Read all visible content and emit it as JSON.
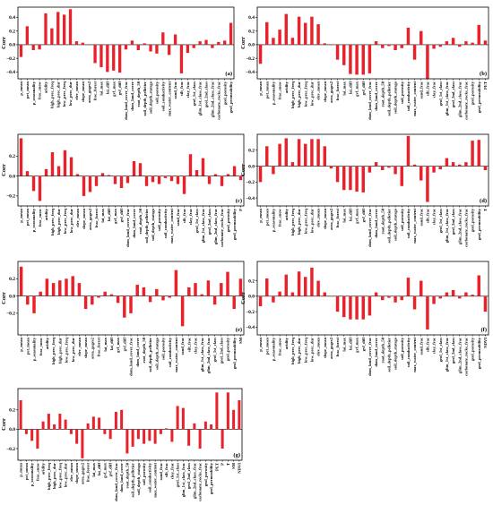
{
  "chart_data": [
    {
      "type": "bar",
      "panel_label": "(a)",
      "ylabel": "Corr",
      "ylim": [
        -0.5,
        0.55
      ],
      "yticks": [
        -0.4,
        -0.2,
        0.0,
        0.2,
        0.4
      ],
      "bar_color": "#e8212a",
      "categories": [
        "p_mean",
        "pet_mean",
        "p_seasonality",
        "frac_snow",
        "aridity",
        "high_prec_freq",
        "high_prec_dur",
        "low_prec_freq",
        "low_prec_dur",
        "elev_mean",
        "slope_mean",
        "area_gages2",
        "frac_forest",
        "lai_max",
        "lai_diff",
        "gvf_max",
        "gvf_diff",
        "dom_land_cover_frac",
        "dom_land_cover",
        "root_depth_50",
        "soil_depth_pelletier",
        "soil_depth_statsgo",
        "soil_porosity",
        "soil_conductivity",
        "max_water_content",
        "sand_frac",
        "silt_frac",
        "clay_frac",
        "geol_1st_class",
        "glim_1st_class_frac",
        "geol_2nd_class",
        "glim_2nd_class_frac",
        "carbonate_rocks_frac",
        "geol_porosity",
        "geol_permeability"
      ],
      "values": [
        -0.18,
        0.27,
        -0.08,
        -0.07,
        0.46,
        0.24,
        0.48,
        0.44,
        0.52,
        0.05,
        0.03,
        0.0,
        -0.27,
        -0.33,
        -0.4,
        -0.38,
        -0.41,
        -0.07,
        0.06,
        -0.08,
        0.02,
        -0.1,
        -0.13,
        0.18,
        -0.15,
        0.15,
        -0.42,
        -0.12,
        -0.05,
        0.05,
        0.07,
        -0.05,
        0.04,
        0.06,
        0.32
      ]
    },
    {
      "type": "bar",
      "panel_label": "(b)",
      "ylabel": "Corr",
      "ylim": [
        -0.5,
        0.55
      ],
      "yticks": [
        -0.4,
        -0.2,
        0.0,
        0.2,
        0.4
      ],
      "bar_color": "#e8212a",
      "categories": [
        "p_mean",
        "pet_mean",
        "p_seasonality",
        "frac_snow",
        "aridity",
        "high_prec_freq",
        "high_prec_dur",
        "low_prec_freq",
        "low_prec_dur",
        "elev_mean",
        "slope_mean",
        "area_gages2",
        "frac_forest",
        "lai_max",
        "lai_diff",
        "gvf_max",
        "gvf_diff",
        "dom_land_cover_frac",
        "dom_land_cover",
        "root_depth_50",
        "soil_depth_pelletier",
        "soil_depth_statsgo",
        "soil_porosity",
        "soil_conductivity",
        "max_water_content",
        "sand_frac",
        "silt_frac",
        "clay_frac",
        "geol_1st_class",
        "glim_1st_class_frac",
        "geol_2nd_class",
        "glim_2nd_class_frac",
        "carbonate_rocks_frac",
        "geol_porosity",
        "geol_permeability",
        "PET"
      ],
      "values": [
        -0.28,
        0.33,
        0.1,
        0.22,
        0.45,
        0.1,
        0.41,
        0.32,
        0.41,
        0.3,
        0.02,
        0.0,
        -0.22,
        -0.3,
        -0.43,
        -0.44,
        -0.44,
        -0.42,
        0.05,
        -0.05,
        -0.02,
        -0.08,
        -0.05,
        0.25,
        -0.22,
        0.2,
        -0.5,
        -0.06,
        -0.03,
        0.05,
        0.1,
        -0.03,
        0.05,
        0.03,
        0.29,
        0.06
      ]
    },
    {
      "type": "bar",
      "panel_label": "(c)",
      "ylabel": "Corr",
      "ylim": [
        -0.3,
        0.42
      ],
      "yticks": [
        -0.2,
        0.0,
        0.2
      ],
      "bar_color": "#e8212a",
      "categories": [
        "p_mean",
        "pet_mean",
        "p_seasonality",
        "frac_snow",
        "aridity",
        "high_prec_freq",
        "high_prec_dur",
        "low_prec_freq",
        "low_prec_dur",
        "elev_mean",
        "slope_mean",
        "area_gages2",
        "frac_forest",
        "lai_max",
        "lai_diff",
        "gvf_max",
        "gvf_diff",
        "dom_land_cover_frac",
        "dom_land_cover",
        "root_depth_50",
        "soil_depth_pelletier",
        "soil_depth_statsgo",
        "soil_porosity",
        "soil_conductivity",
        "max_water_content",
        "sand_frac",
        "silt_frac",
        "clay_frac",
        "geol_1st_class",
        "glim_1st_class_frac",
        "geol_2nd_class",
        "glim_2nd_class_frac",
        "carbonate_rocks_frac",
        "geol_porosity",
        "geol_permeability",
        "P"
      ],
      "values": [
        0.38,
        0.05,
        -0.15,
        -0.25,
        0.07,
        0.24,
        0.1,
        0.26,
        0.19,
        0.02,
        -0.2,
        -0.16,
        -0.1,
        0.03,
        0.01,
        -0.08,
        -0.12,
        -0.07,
        0.15,
        0.13,
        -0.1,
        -0.06,
        -0.08,
        -0.02,
        -0.05,
        -0.08,
        -0.18,
        0.22,
        0.06,
        0.18,
        -0.08,
        0.02,
        -0.1,
        0.02,
        0.1,
        -0.04
      ]
    },
    {
      "type": "bar",
      "panel_label": "(d)",
      "ylabel": "Corr",
      "ylim": [
        -0.5,
        0.4
      ],
      "yticks": [
        -0.4,
        -0.2,
        0.0,
        0.2
      ],
      "bar_color": "#e8212a",
      "categories": [
        "p_mean",
        "pet_mean",
        "p_seasonality",
        "frac_snow",
        "aridity",
        "high_prec_freq",
        "high_prec_dur",
        "low_prec_freq",
        "low_prec_dur",
        "elev_mean",
        "slope_mean",
        "area_gages2",
        "frac_forest",
        "lai_max",
        "lai_diff",
        "gvf_max",
        "gvf_diff",
        "dom_land_cover_frac",
        "dom_land_cover",
        "root_depth_50",
        "soil_depth_pelletier",
        "soil_depth_statsgo",
        "soil_porosity",
        "soil_conductivity",
        "max_water_content",
        "sand_frac",
        "silt_frac",
        "clay_frac",
        "geol_1st_class",
        "glim_1st_class_frac",
        "geol_2nd_class",
        "glim_2nd_class_frac",
        "carbonate_rocks_frac",
        "geol_porosity",
        "geol_permeability",
        "T"
      ],
      "values": [
        -0.2,
        0.25,
        -0.1,
        0.28,
        0.35,
        0.05,
        0.34,
        0.28,
        0.34,
        0.34,
        0.25,
        -0.03,
        -0.2,
        -0.3,
        -0.3,
        -0.32,
        -0.33,
        -0.08,
        0.05,
        -0.05,
        -0.02,
        -0.1,
        -0.25,
        0.38,
        0.02,
        -0.18,
        -0.45,
        -0.08,
        -0.04,
        0.1,
        0.05,
        0.02,
        0.05,
        0.32,
        0.33,
        -0.05
      ]
    },
    {
      "type": "bar",
      "panel_label": "(e)",
      "ylabel": "Corr",
      "ylim": [
        -0.45,
        0.4
      ],
      "yticks": [
        -0.2,
        0.0,
        0.2
      ],
      "bar_color": "#e8212a",
      "categories": [
        "p_mean",
        "pet_mean",
        "p_seasonality",
        "frac_snow",
        "aridity",
        "high_prec_freq",
        "high_prec_dur",
        "low_prec_freq",
        "low_prec_dur",
        "elev_mean",
        "slope_mean",
        "area_gages2",
        "frac_forest",
        "lai_max",
        "lai_diff",
        "gvf_max",
        "gvf_diff",
        "dom_land_cover_frac",
        "dom_land_cover",
        "root_depth_50",
        "soil_depth_pelletier",
        "soil_depth_statsgo",
        "soil_porosity",
        "soil_conductivity",
        "max_water_content",
        "sand_frac",
        "silt_frac",
        "clay_frac",
        "glim_1st_class_frac",
        "glim_2nd_class_frac",
        "geol_1st_class",
        "geol_2nd_class",
        "geol_porosity",
        "geol_permeability",
        "SM"
      ],
      "values": [
        0.34,
        -0.1,
        -0.2,
        0.05,
        0.2,
        0.15,
        0.18,
        0.2,
        0.23,
        0.15,
        -0.15,
        -0.1,
        -0.02,
        0.05,
        0.02,
        -0.08,
        -0.25,
        -0.2,
        0.13,
        0.1,
        -0.07,
        0.08,
        -0.05,
        -0.02,
        0.3,
        -0.35,
        0.1,
        0.15,
        0.02,
        0.18,
        -0.1,
        0.15,
        0.28,
        -0.15,
        0.2
      ]
    },
    {
      "type": "bar",
      "panel_label": "(f)",
      "ylabel": "Corr",
      "ylim": [
        -0.5,
        0.45
      ],
      "yticks": [
        -0.4,
        -0.2,
        0.0,
        0.2
      ],
      "bar_color": "#e8212a",
      "categories": [
        "p_mean",
        "pet_mean",
        "p_seasonality",
        "frac_snow",
        "aridity",
        "high_prec_freq",
        "high_prec_dur",
        "low_prec_freq",
        "low_prec_dur",
        "elev_mean",
        "slope_mean",
        "area_gages2",
        "frac_forest",
        "lai_max",
        "lai_diff",
        "gvf_max",
        "gvf_diff",
        "dom_land_cover_frac",
        "dom_land_cover",
        "root_depth_50",
        "soil_depth_pelletier",
        "soil_depth_statsgo",
        "soil_porosity",
        "soil_conductivity",
        "max_water_content",
        "sand_frac",
        "silt_frac",
        "clay_frac",
        "geol_1st_class",
        "glim_1st_class_frac",
        "geol_2nd_class",
        "glim_2nd_class_frac",
        "carbonate_rocks_frac",
        "geol_porosity",
        "geol_permeability",
        "NDVI"
      ],
      "values": [
        -0.13,
        0.23,
        -0.08,
        0.06,
        0.28,
        0.05,
        0.32,
        0.25,
        0.37,
        0.2,
        0.05,
        0.0,
        -0.2,
        -0.27,
        -0.3,
        -0.3,
        -0.3,
        -0.25,
        0.05,
        -0.05,
        -0.02,
        -0.08,
        -0.05,
        0.24,
        -0.17,
        0.2,
        -0.43,
        -0.1,
        -0.03,
        0.05,
        0.08,
        -0.03,
        0.05,
        0.02,
        0.27,
        -0.2
      ]
    },
    {
      "type": "bar",
      "panel_label": "(g)",
      "ylabel": "Corr",
      "ylim": [
        -0.32,
        0.42
      ],
      "yticks": [
        -0.2,
        0.0,
        0.2
      ],
      "bar_color": "#e8212a",
      "categories": [
        "p_mean",
        "pet_mean",
        "p_seasonality",
        "frac_snow",
        "aridity",
        "high_prec_freq",
        "high_prec_dur",
        "low_prec_freq",
        "low_prec_dur",
        "elev_mean",
        "slope_mean",
        "area_gages2",
        "frac_forest",
        "lai_max",
        "lai_diff",
        "gvf_max",
        "gvf_diff",
        "dom_land_cover_frac",
        "dom_land_cover",
        "root_depth_50",
        "soil_depth_pelletier",
        "soil_depth_statsgo",
        "soil_porosity",
        "soil_conductivity",
        "max_water_content",
        "sand_frac",
        "silt_frac",
        "clay_frac",
        "geol_1st_class",
        "glim_1st_class_frac",
        "geol_2nd_class",
        "glim_2nd_class_frac",
        "carbonate_rocks_frac",
        "geol_porosity",
        "geol_permeability",
        "PET",
        "P",
        "T",
        "SM",
        "NDVI"
      ],
      "values": [
        0.3,
        -0.05,
        -0.12,
        -0.2,
        0.08,
        0.16,
        0.05,
        0.16,
        0.1,
        -0.05,
        -0.15,
        -0.3,
        0.06,
        0.13,
        0.12,
        -0.05,
        -0.1,
        0.18,
        0.2,
        -0.25,
        -0.18,
        -0.1,
        -0.15,
        -0.12,
        -0.15,
        -0.05,
        0.01,
        -0.13,
        0.24,
        0.22,
        -0.17,
        0.06,
        -0.2,
        0.08,
        0.05,
        0.38,
        -0.2,
        0.38,
        0.2,
        0.3
      ]
    }
  ]
}
